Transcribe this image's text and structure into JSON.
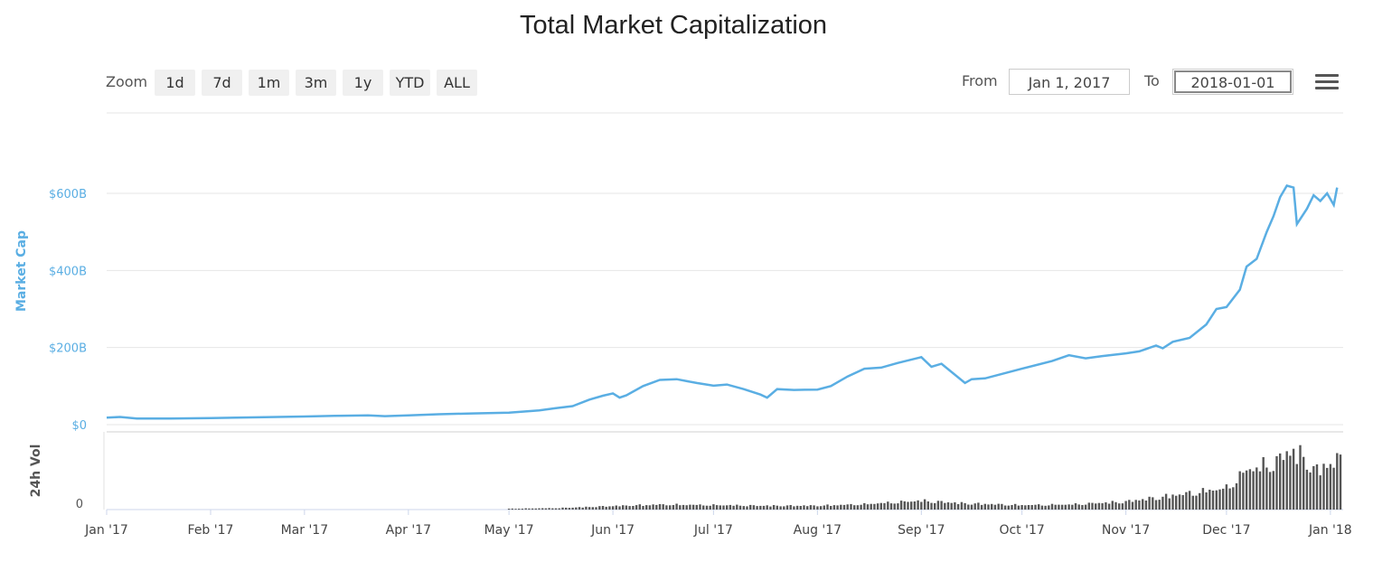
{
  "chart_data": {
    "type": "line",
    "title": "Total Market Capitalization",
    "ylabel": "Market Cap",
    "ylabel_volume": "24h Vol",
    "y_unit": "USD billions",
    "ylim": [
      0,
      700
    ],
    "y_ticks": [
      "$0",
      "$200B",
      "$400B",
      "$600B"
    ],
    "y_tick_values": [
      0,
      200,
      400,
      600
    ],
    "volume_ticks": [
      "0"
    ],
    "x_ticks": [
      "Jan '17",
      "Feb '17",
      "Mar '17",
      "Apr '17",
      "May '17",
      "Jun '17",
      "Jul '17",
      "Aug '17",
      "Sep '17",
      "Oct '17",
      "Nov '17",
      "Dec '17",
      "Jan '18"
    ],
    "x_tick_days": [
      0,
      31,
      59,
      90,
      120,
      151,
      181,
      212,
      243,
      273,
      304,
      334,
      365
    ],
    "x_range": [
      "2017-01-01",
      "2018-01-04"
    ],
    "grid": true,
    "legend": "none",
    "color_line": "#5aaee3",
    "color_volume": "#555555",
    "series": [
      {
        "values_unit": "USD billions",
        "points": [
          [
            "2017-01-01",
            18
          ],
          [
            "2017-01-05",
            20
          ],
          [
            "2017-01-10",
            16
          ],
          [
            "2017-01-20",
            16
          ],
          [
            "2017-02-01",
            17
          ],
          [
            "2017-02-15",
            19
          ],
          [
            "2017-03-01",
            21
          ],
          [
            "2017-03-10",
            23
          ],
          [
            "2017-03-20",
            24
          ],
          [
            "2017-03-25",
            22
          ],
          [
            "2017-04-01",
            24
          ],
          [
            "2017-04-10",
            27
          ],
          [
            "2017-04-20",
            29
          ],
          [
            "2017-05-01",
            31
          ],
          [
            "2017-05-10",
            37
          ],
          [
            "2017-05-15",
            43
          ],
          [
            "2017-05-20",
            48
          ],
          [
            "2017-05-25",
            65
          ],
          [
            "2017-05-29",
            75
          ],
          [
            "2017-06-01",
            81
          ],
          [
            "2017-06-03",
            70
          ],
          [
            "2017-06-05",
            76
          ],
          [
            "2017-06-10",
            100
          ],
          [
            "2017-06-15",
            116
          ],
          [
            "2017-06-20",
            118
          ],
          [
            "2017-06-26",
            108
          ],
          [
            "2017-07-01",
            101
          ],
          [
            "2017-07-05",
            104
          ],
          [
            "2017-07-10",
            92
          ],
          [
            "2017-07-15",
            78
          ],
          [
            "2017-07-17",
            70
          ],
          [
            "2017-07-20",
            92
          ],
          [
            "2017-07-25",
            90
          ],
          [
            "2017-08-01",
            91
          ],
          [
            "2017-08-05",
            100
          ],
          [
            "2017-08-10",
            125
          ],
          [
            "2017-08-15",
            145
          ],
          [
            "2017-08-20",
            148
          ],
          [
            "2017-08-25",
            160
          ],
          [
            "2017-09-01",
            175
          ],
          [
            "2017-09-04",
            150
          ],
          [
            "2017-09-07",
            158
          ],
          [
            "2017-09-14",
            108
          ],
          [
            "2017-09-16",
            118
          ],
          [
            "2017-09-20",
            120
          ],
          [
            "2017-10-01",
            145
          ],
          [
            "2017-10-10",
            165
          ],
          [
            "2017-10-15",
            180
          ],
          [
            "2017-10-20",
            172
          ],
          [
            "2017-10-25",
            178
          ],
          [
            "2017-11-01",
            185
          ],
          [
            "2017-11-05",
            190
          ],
          [
            "2017-11-10",
            205
          ],
          [
            "2017-11-12",
            198
          ],
          [
            "2017-11-15",
            215
          ],
          [
            "2017-11-20",
            225
          ],
          [
            "2017-11-25",
            260
          ],
          [
            "2017-11-28",
            300
          ],
          [
            "2017-12-01",
            305
          ],
          [
            "2017-12-05",
            350
          ],
          [
            "2017-12-07",
            410
          ],
          [
            "2017-12-10",
            430
          ],
          [
            "2017-12-13",
            500
          ],
          [
            "2017-12-15",
            540
          ],
          [
            "2017-12-17",
            590
          ],
          [
            "2017-12-19",
            620
          ],
          [
            "2017-12-21",
            615
          ],
          [
            "2017-12-22",
            520
          ],
          [
            "2017-12-25",
            560
          ],
          [
            "2017-12-27",
            595
          ],
          [
            "2017-12-29",
            580
          ],
          [
            "2017-12-31",
            600
          ],
          [
            "2018-01-02",
            570
          ],
          [
            "2018-01-03",
            615
          ]
        ]
      }
    ],
    "volume_series": {
      "values_unit": "USD billions",
      "points": [
        [
          "2017-05-01",
          0.5
        ],
        [
          "2017-05-15",
          0.8
        ],
        [
          "2017-06-01",
          2.0
        ],
        [
          "2017-06-15",
          2.8
        ],
        [
          "2017-07-01",
          2.5
        ],
        [
          "2017-07-15",
          2.2
        ],
        [
          "2017-08-01",
          2.2
        ],
        [
          "2017-08-15",
          3.0
        ],
        [
          "2017-09-01",
          5.0
        ],
        [
          "2017-09-14",
          3.5
        ],
        [
          "2017-10-01",
          2.5
        ],
        [
          "2017-10-15",
          2.8
        ],
        [
          "2017-11-01",
          4.5
        ],
        [
          "2017-11-15",
          8.0
        ],
        [
          "2017-12-01",
          12.0
        ],
        [
          "2017-12-07",
          22.0
        ],
        [
          "2017-12-15",
          26.0
        ],
        [
          "2017-12-21",
          34.0
        ],
        [
          "2017-12-28",
          22.0
        ],
        [
          "2018-01-03",
          28.0
        ]
      ]
    }
  },
  "toolbar": {
    "zoom_label": "Zoom",
    "zoom_buttons": [
      "1d",
      "7d",
      "1m",
      "3m",
      "1y",
      "YTD",
      "ALL"
    ],
    "from_label": "From",
    "from_value": "Jan 1, 2017",
    "to_label": "To",
    "to_value": "2018-01-01"
  },
  "menu_icon": "hamburger-menu-icon"
}
